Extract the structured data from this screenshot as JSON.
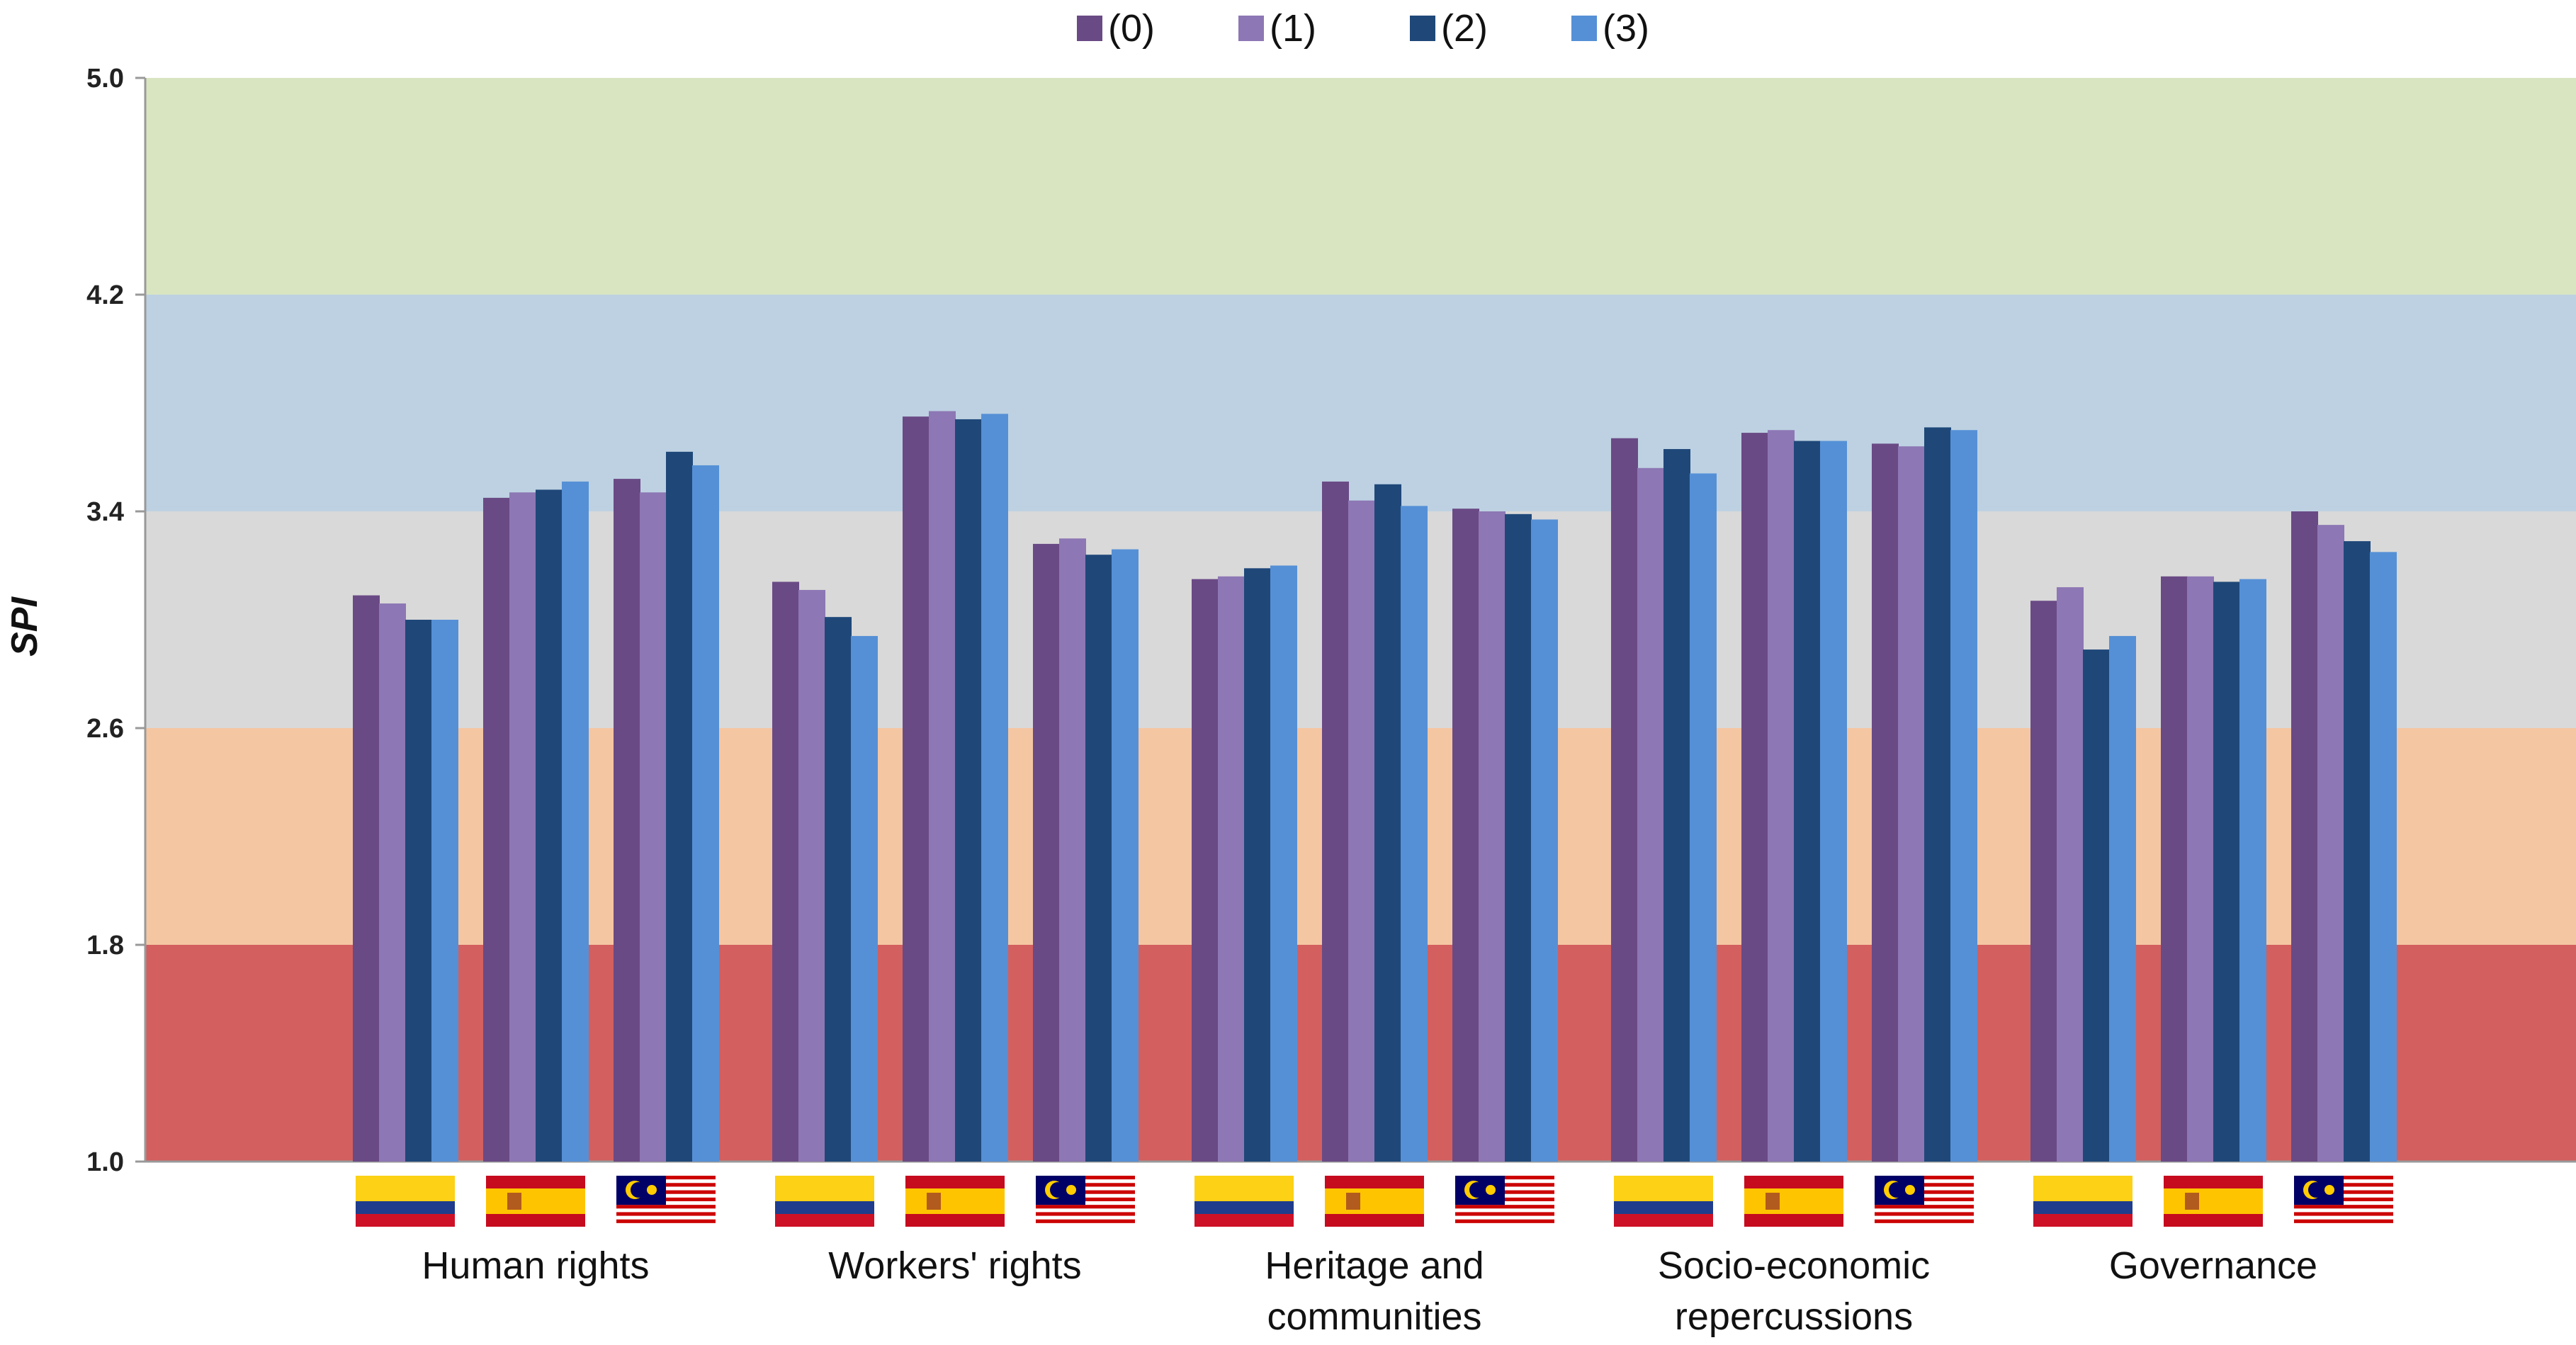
{
  "chart_data": {
    "type": "bar",
    "title": "",
    "xlabel": "",
    "ylabel": "SPI",
    "ylim": [
      1.0,
      5.0
    ],
    "yticks": [
      "1.0",
      "1.8",
      "2.6",
      "3.4",
      "4.2",
      "5.0"
    ],
    "legend_position": "top-center",
    "bands": [
      {
        "from": 1.0,
        "to": 1.8,
        "color": "#d35f5f"
      },
      {
        "from": 1.8,
        "to": 2.6,
        "color": "#f5c6a2"
      },
      {
        "from": 2.6,
        "to": 3.4,
        "color": "#d9d9d9"
      },
      {
        "from": 3.4,
        "to": 4.2,
        "color": "#bdd1e2"
      },
      {
        "from": 4.2,
        "to": 5.0,
        "color": "#d9e5c1"
      }
    ],
    "series": [
      {
        "name": "(0)",
        "color": "#6a4a85"
      },
      {
        "name": "(1)",
        "color": "#8d77b4"
      },
      {
        "name": "(2)",
        "color": "#1f4879"
      },
      {
        "name": "(3)",
        "color": "#5590d6"
      }
    ],
    "categories": [
      {
        "label_lines": [
          "Human rights"
        ],
        "countries": [
          {
            "flag": "colombia-flag",
            "values": [
              3.09,
              3.06,
              3.0,
              3.0
            ]
          },
          {
            "flag": "spain-flag",
            "values": [
              3.45,
              3.47,
              3.48,
              3.51
            ]
          },
          {
            "flag": "malaysia-flag",
            "values": [
              3.52,
              3.47,
              3.62,
              3.57
            ]
          }
        ]
      },
      {
        "label_lines": [
          "Workers' rights"
        ],
        "countries": [
          {
            "flag": "colombia-flag",
            "values": [
              3.14,
              3.11,
              3.01,
              2.94
            ]
          },
          {
            "flag": "spain-flag",
            "values": [
              3.75,
              3.77,
              3.74,
              3.76
            ]
          },
          {
            "flag": "malaysia-flag",
            "values": [
              3.28,
              3.3,
              3.24,
              3.26
            ]
          }
        ]
      },
      {
        "label_lines": [
          "Heritage and",
          "communities"
        ],
        "countries": [
          {
            "flag": "colombia-flag",
            "values": [
              3.15,
              3.16,
              3.19,
              3.2
            ]
          },
          {
            "flag": "spain-flag",
            "values": [
              3.51,
              3.44,
              3.5,
              3.42
            ]
          },
          {
            "flag": "malaysia-flag",
            "values": [
              3.41,
              3.4,
              3.39,
              3.37
            ]
          }
        ]
      },
      {
        "label_lines": [
          "Socio-economic",
          "repercussions"
        ],
        "countries": [
          {
            "flag": "colombia-flag",
            "values": [
              3.67,
              3.56,
              3.63,
              3.54
            ]
          },
          {
            "flag": "spain-flag",
            "values": [
              3.69,
              3.7,
              3.66,
              3.66
            ]
          },
          {
            "flag": "malaysia-flag",
            "values": [
              3.65,
              3.64,
              3.71,
              3.7
            ]
          }
        ]
      },
      {
        "label_lines": [
          "Governance"
        ],
        "countries": [
          {
            "flag": "colombia-flag",
            "values": [
              3.07,
              3.12,
              2.89,
              2.94
            ]
          },
          {
            "flag": "spain-flag",
            "values": [
              3.16,
              3.16,
              3.14,
              3.15
            ]
          },
          {
            "flag": "malaysia-flag",
            "values": [
              3.4,
              3.35,
              3.29,
              3.25
            ]
          }
        ]
      }
    ]
  }
}
